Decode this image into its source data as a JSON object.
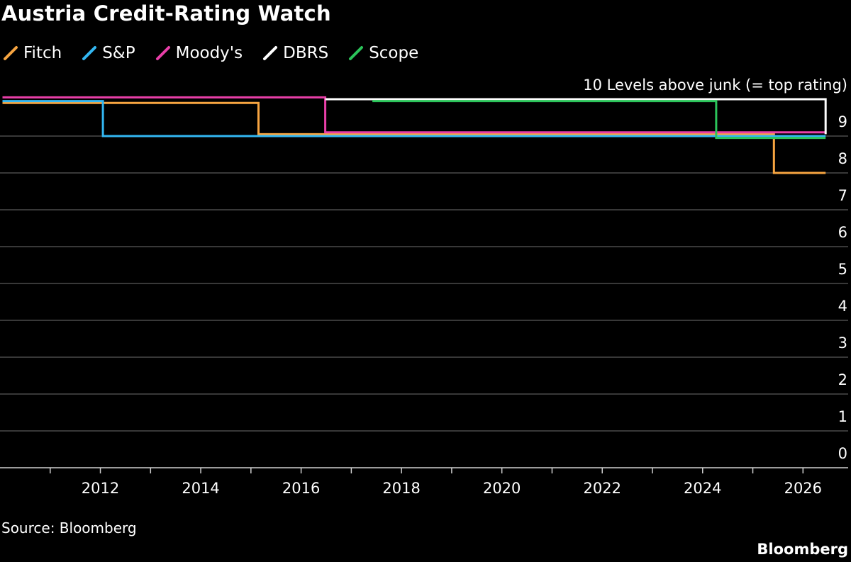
{
  "colors": {
    "background": "#000000",
    "text": "#ffffff",
    "grid": "#5a5a5a",
    "axis": "#cfcfcf"
  },
  "chart_data": {
    "type": "line",
    "title": "Austria Credit-Rating Watch",
    "ytitle": "10 Levels above junk (= top rating)",
    "xlabel": "",
    "ylabel": "",
    "xlim": [
      2010.0,
      2026.9
    ],
    "ylim": [
      0,
      10
    ],
    "yticks": [
      0,
      1,
      2,
      3,
      4,
      5,
      6,
      7,
      8,
      9
    ],
    "xticks": [
      2012,
      2014,
      2016,
      2018,
      2020,
      2022,
      2024,
      2026
    ],
    "grid": true,
    "legend_position": "top-left",
    "line_shape": "step",
    "series": [
      {
        "name": "Fitch",
        "color": "#f7a541",
        "points": [
          [
            2010.05,
            9.9
          ],
          [
            2015.15,
            9.9
          ],
          [
            2015.15,
            9.05
          ],
          [
            2025.42,
            9.05
          ],
          [
            2025.42,
            8.0
          ],
          [
            2026.45,
            8.0
          ]
        ]
      },
      {
        "name": "S&P",
        "color": "#33b7f2",
        "points": [
          [
            2010.05,
            9.95
          ],
          [
            2012.05,
            9.95
          ],
          [
            2012.05,
            9.0
          ],
          [
            2026.45,
            9.0
          ]
        ]
      },
      {
        "name": "Moody's",
        "color": "#e93fa9",
        "points": [
          [
            2010.05,
            10.05
          ],
          [
            2016.48,
            10.05
          ],
          [
            2016.48,
            9.1
          ],
          [
            2026.45,
            9.1
          ]
        ]
      },
      {
        "name": "DBRS",
        "color": "#ffffff",
        "points": [
          [
            2016.48,
            10.0
          ],
          [
            2026.45,
            10.0
          ],
          [
            2026.45,
            9.05
          ]
        ]
      },
      {
        "name": "Scope",
        "color": "#2bc45a",
        "points": [
          [
            2017.42,
            9.95
          ],
          [
            2024.27,
            9.95
          ],
          [
            2024.27,
            8.95
          ],
          [
            2026.45,
            8.95
          ]
        ]
      }
    ]
  },
  "footer": {
    "source": "Source: Bloomberg",
    "brand": "Bloomberg"
  }
}
